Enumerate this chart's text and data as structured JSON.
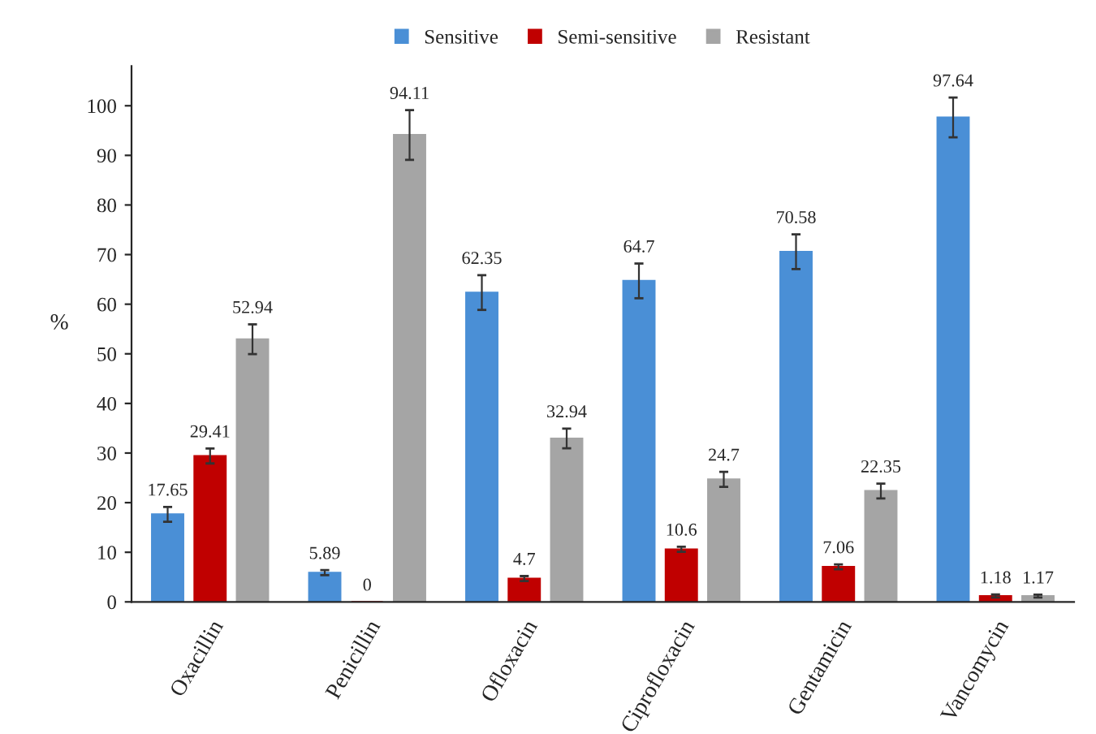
{
  "chart_data": {
    "type": "bar",
    "ylabel": "%",
    "categories": [
      "Oxacillin",
      "Penicillin",
      "Ofloxacin",
      "Ciprofloxacin",
      "Gentamicin",
      "Vancomycin"
    ],
    "series": [
      {
        "name": "Sensitive",
        "color": "#4a8fd6",
        "values": [
          17.65,
          5.89,
          62.35,
          64.7,
          70.58,
          97.64
        ],
        "errors": [
          1.5,
          0.5,
          3.5,
          3.5,
          3.5,
          4
        ]
      },
      {
        "name": "Semi-sensitive",
        "color": "#c00000",
        "values": [
          29.41,
          0,
          4.7,
          10.6,
          7.06,
          1.18
        ],
        "errors": [
          1.5,
          null,
          0.5,
          0.5,
          0.5,
          0.3
        ]
      },
      {
        "name": "Resistant",
        "color": "#a5a5a5",
        "values": [
          52.94,
          94.11,
          32.94,
          24.7,
          22.35,
          1.17
        ],
        "errors": [
          3,
          5,
          2,
          1.5,
          1.5,
          0.3
        ]
      }
    ],
    "ylim": [
      0,
      108
    ],
    "yticks": [
      0,
      10,
      20,
      30,
      40,
      50,
      60,
      70,
      80,
      90,
      100
    ],
    "data_labels": true,
    "legend": "top",
    "grid": false
  }
}
